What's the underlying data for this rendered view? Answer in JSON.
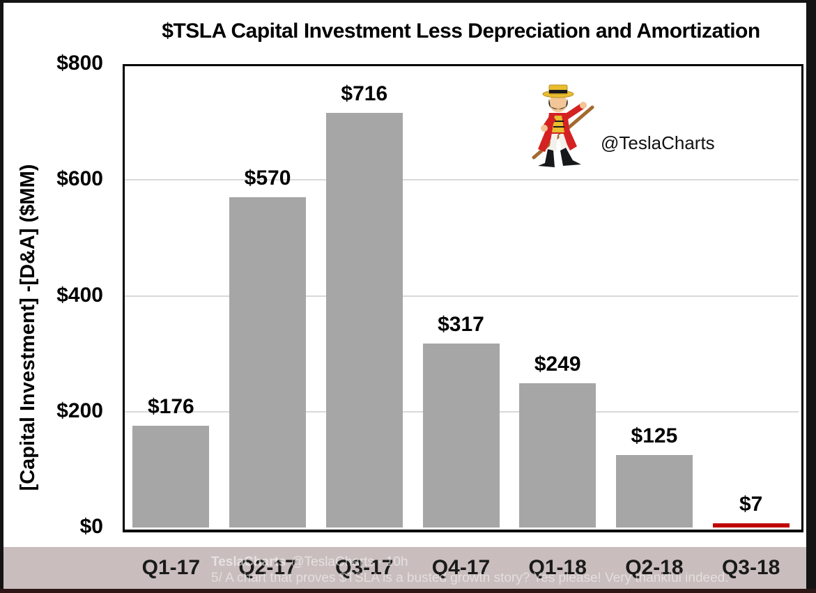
{
  "chart_data": {
    "type": "bar",
    "title": "$TSLA Capital Investment Less Depreciation and Amortization",
    "categories": [
      "Q1-17",
      "Q2-17",
      "Q3-17",
      "Q4-17",
      "Q1-18",
      "Q2-18",
      "Q3-18"
    ],
    "values": [
      176,
      570,
      716,
      317,
      249,
      125,
      7
    ],
    "labels": [
      "$176",
      "$570",
      "$716",
      "$317",
      "$249",
      "$125",
      "$7"
    ],
    "xlabel": "",
    "ylabel": "[Capital Investment] -[D&A] ($MM)",
    "ylim": [
      0,
      800
    ],
    "yticks": [
      {
        "label": "$800",
        "value": 800
      },
      {
        "label": "$600",
        "value": 600
      },
      {
        "label": "$400",
        "value": 400
      },
      {
        "label": "$200",
        "value": 200
      },
      {
        "label": "$0",
        "value": 0
      }
    ],
    "gridline_values": [
      600,
      400,
      200
    ],
    "grid": true,
    "legend": "none",
    "bar_color_default": "#a6a6a6",
    "bar_color_highlight": "#c00000",
    "highlight_index": 6
  },
  "watermark": {
    "handle": "@TeslaCharts",
    "mascot": "ringmaster-mascot"
  },
  "tweet_overlay": {
    "author": "TeslaCharts",
    "meta": "@TeslaCharts · 10h",
    "text": "5/ A chart that proves $TSLA is a busted growth story? Yes please! Very thankful indeed."
  },
  "colors": {
    "bar_gray": "#a6a6a6",
    "bar_red": "#c00000",
    "gridline": "#d9d9d9",
    "footer_band": "#c9bdbd",
    "outer_border": "#141414",
    "bottom_border": "#2d1716",
    "text": "#000000"
  }
}
